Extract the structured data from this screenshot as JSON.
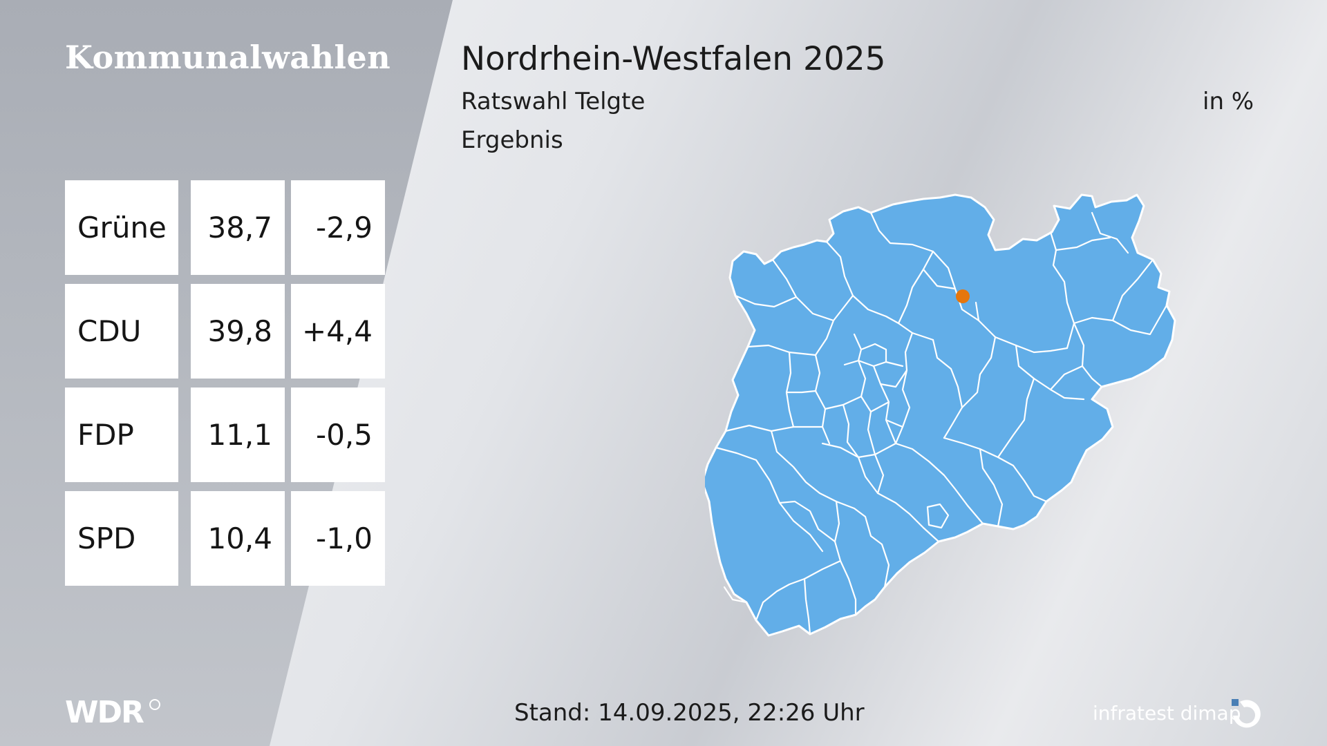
{
  "header": {
    "brand": "Kommunalwahlen",
    "title": "Nordrhein-Westfalen 2025",
    "subtitle": "Ratswahl Telgte",
    "subtitle2": "Ergebnis",
    "unit": "in %"
  },
  "results": [
    {
      "party": "Grüne",
      "share": "38,7",
      "diff": "-2,9"
    },
    {
      "party": "CDU",
      "share": "39,8",
      "diff": "+4,4"
    },
    {
      "party": "FDP",
      "share": "11,1",
      "diff": "-0,5"
    },
    {
      "party": "SPD",
      "share": "10,4",
      "diff": "-1,0"
    }
  ],
  "map": {
    "fill_color": "#62aee8",
    "border_color": "#ffffff",
    "marker_color": "#e6760c"
  },
  "footer": {
    "logo": "WDR",
    "stand": "Stand: 14.09.2025, 22:26 Uhr",
    "pollster": "infratest dimap"
  }
}
